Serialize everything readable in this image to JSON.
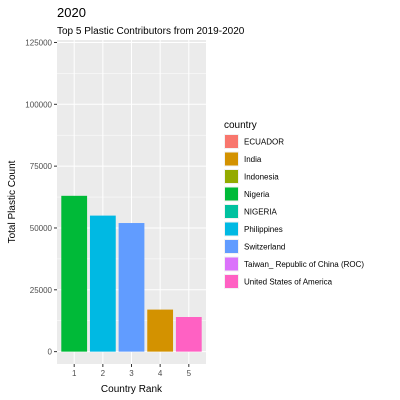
{
  "chart_data": {
    "type": "bar",
    "title": "2020",
    "subtitle": "Top 5 Plastic Contributors from 2019-2020",
    "xlabel": "Country Rank",
    "ylabel": "Total Plastic Count",
    "ylim": [
      -5000,
      126000
    ],
    "yticks": [
      0,
      25000,
      50000,
      75000,
      100000,
      125000
    ],
    "categories": [
      "1",
      "2",
      "3",
      "4",
      "5"
    ],
    "bars": [
      {
        "category": "1",
        "value": 63000,
        "country": "Nigeria"
      },
      {
        "category": "2",
        "value": 55000,
        "country": "Philippines"
      },
      {
        "category": "3",
        "value": 52000,
        "country": "Switzerland"
      },
      {
        "category": "4",
        "value": 17000,
        "country": "India"
      },
      {
        "category": "5",
        "value": 14000,
        "country": "United States of America"
      }
    ],
    "legend": {
      "title": "country",
      "position": "right",
      "entries": [
        {
          "label": "ECUADOR",
          "color": "#F8766D"
        },
        {
          "label": "India",
          "color": "#D39200"
        },
        {
          "label": "Indonesia",
          "color": "#93AA00"
        },
        {
          "label": "Nigeria",
          "color": "#00BA38"
        },
        {
          "label": "NIGERIA",
          "color": "#00C19F"
        },
        {
          "label": "Philippines",
          "color": "#00B9E3"
        },
        {
          "label": "Switzerland",
          "color": "#619CFF"
        },
        {
          "label": "Taiwan_ Republic of China (ROC)",
          "color": "#DB72FB"
        },
        {
          "label": "United States of America",
          "color": "#FF61C3"
        }
      ]
    },
    "panel_background": "#EBEBEB",
    "grid_color": "#FFFFFF"
  }
}
